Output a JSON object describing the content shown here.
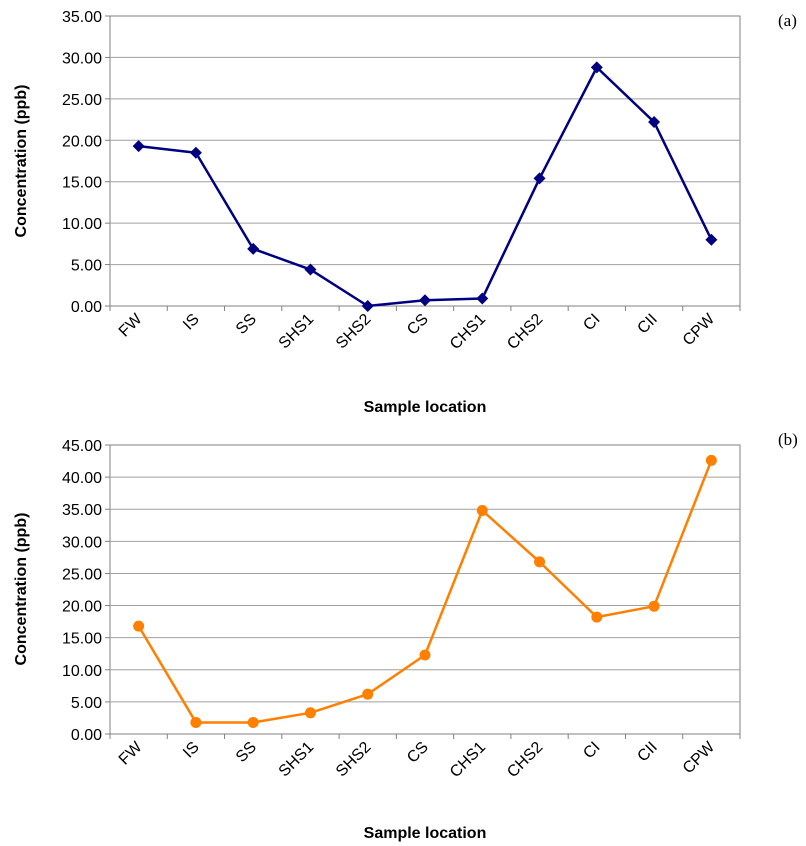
{
  "chart_data": [
    {
      "type": "line",
      "panel_label": "(a)",
      "xlabel": "Sample location",
      "ylabel": "Concentration (ppb)",
      "ylim": [
        0,
        35
      ],
      "y_ticks": [
        "0.00",
        "5.00",
        "10.00",
        "15.00",
        "20.00",
        "25.00",
        "30.00",
        "35.00"
      ],
      "categories": [
        "FW",
        "IS",
        "SS",
        "SHS1",
        "SHS2",
        "CS",
        "CHS1",
        "CHS2",
        "CI",
        "CII",
        "CPW"
      ],
      "grid": "horizontal",
      "marker": "diamond",
      "color": "#000080",
      "series": [
        {
          "values": [
            19.3,
            18.5,
            6.9,
            4.4,
            0.0,
            0.7,
            0.9,
            15.4,
            28.8,
            22.2,
            8.0
          ]
        }
      ]
    },
    {
      "type": "line",
      "panel_label": "(b)",
      "xlabel": "Sample location",
      "ylabel": "Concentration (ppb)",
      "ylim": [
        0,
        45
      ],
      "y_ticks": [
        "0.00",
        "5.00",
        "10.00",
        "15.00",
        "20.00",
        "25.00",
        "30.00",
        "35.00",
        "40.00",
        "45.00"
      ],
      "categories": [
        "FW",
        "IS",
        "SS",
        "SHS1",
        "SHS2",
        "CS",
        "CHS1",
        "CHS2",
        "CI",
        "CII",
        "CPW"
      ],
      "grid": "horizontal",
      "marker": "circle",
      "color": "#FF7F00",
      "series": [
        {
          "values": [
            16.8,
            1.8,
            1.8,
            3.3,
            6.2,
            12.3,
            34.8,
            26.8,
            18.2,
            19.9,
            42.6
          ]
        }
      ]
    }
  ]
}
